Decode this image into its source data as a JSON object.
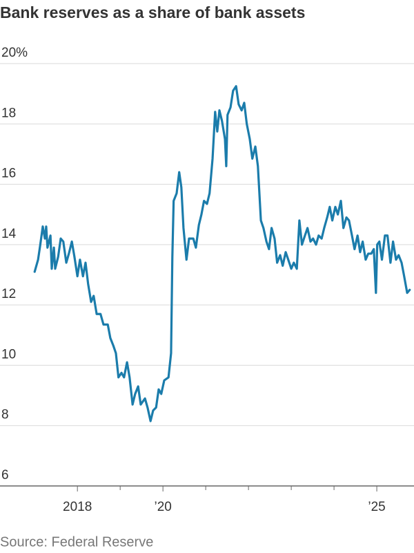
{
  "chart_data": {
    "type": "line",
    "title": "Bank reserves as a share of bank assets",
    "source": "Source: Federal Reserve",
    "color": "#1b7cab",
    "x": [
      2017.0,
      2017.08,
      2017.13,
      2017.19,
      2017.24,
      2017.27,
      2017.3,
      2017.37,
      2017.4,
      2017.45,
      2017.48,
      2017.55,
      2017.61,
      2017.67,
      2017.74,
      2017.8,
      2017.87,
      2017.93,
      2018.0,
      2018.06,
      2018.13,
      2018.19,
      2018.25,
      2018.32,
      2018.38,
      2018.45,
      2018.54,
      2018.61,
      2018.71,
      2018.77,
      2018.84,
      2018.9,
      2018.96,
      2019.03,
      2019.09,
      2019.16,
      2019.22,
      2019.29,
      2019.35,
      2019.42,
      2019.48,
      2019.58,
      2019.64,
      2019.71,
      2019.77,
      2019.84,
      2019.9,
      2019.96,
      2020.03,
      2020.13,
      2020.19,
      2020.22,
      2020.25,
      2020.32,
      2020.38,
      2020.43,
      2020.48,
      2020.55,
      2020.61,
      2020.71,
      2020.77,
      2020.84,
      2020.9,
      2020.96,
      2021.03,
      2021.09,
      2021.16,
      2021.22,
      2021.27,
      2021.32,
      2021.38,
      2021.45,
      2021.48,
      2021.51,
      2021.58,
      2021.64,
      2021.71,
      2021.77,
      2021.84,
      2021.9,
      2021.96,
      2022.03,
      2022.09,
      2022.16,
      2022.22,
      2022.29,
      2022.35,
      2022.42,
      2022.48,
      2022.54,
      2022.61,
      2022.67,
      2022.74,
      2022.8,
      2022.87,
      2022.93,
      2023.0,
      2023.06,
      2023.13,
      2023.19,
      2023.25,
      2023.32,
      2023.38,
      2023.45,
      2023.51,
      2023.58,
      2023.64,
      2023.71,
      2023.77,
      2023.84,
      2023.9,
      2023.96,
      2024.03,
      2024.09,
      2024.16,
      2024.22,
      2024.29,
      2024.35,
      2024.42,
      2024.48,
      2024.55,
      2024.61,
      2024.67,
      2024.74,
      2024.8,
      2024.87,
      2024.93,
      2024.98,
      2025.01,
      2025.06,
      2025.12,
      2025.19,
      2025.25,
      2025.32,
      2025.38,
      2025.45,
      2025.51,
      2025.58,
      2025.64,
      2025.71,
      2025.77
    ],
    "values": [
      13.1,
      13.5,
      13.98,
      14.6,
      14.2,
      14.6,
      13.9,
      14.3,
      13.2,
      13.9,
      13.2,
      13.6,
      14.2,
      14.1,
      13.4,
      13.7,
      14.1,
      13.6,
      12.95,
      13.5,
      12.95,
      13.4,
      12.7,
      12.1,
      12.3,
      11.7,
      11.7,
      11.35,
      11.35,
      10.9,
      10.65,
      10.4,
      9.6,
      9.75,
      9.6,
      10.1,
      9.6,
      8.7,
      9.05,
      9.3,
      8.7,
      8.9,
      8.6,
      8.15,
      8.5,
      8.6,
      9.2,
      9.05,
      9.5,
      9.6,
      10.4,
      13.6,
      15.45,
      15.7,
      16.4,
      15.9,
      14.55,
      13.5,
      14.2,
      14.2,
      13.9,
      14.65,
      15.0,
      15.45,
      15.35,
      15.7,
      16.85,
      18.4,
      17.75,
      18.45,
      18.1,
      17.5,
      16.6,
      18.3,
      18.55,
      19.1,
      19.25,
      18.65,
      18.45,
      18.7,
      18.0,
      17.5,
      16.85,
      17.25,
      16.6,
      14.8,
      14.55,
      14.1,
      13.85,
      14.55,
      14.2,
      13.4,
      13.65,
      13.3,
      13.75,
      13.5,
      13.2,
      13.4,
      13.2,
      14.8,
      14.0,
      14.3,
      14.55,
      14.1,
      14.2,
      14.0,
      14.3,
      14.2,
      14.55,
      14.9,
      15.25,
      14.8,
      15.25,
      15.0,
      15.45,
      14.55,
      14.9,
      14.8,
      14.3,
      13.85,
      14.3,
      13.75,
      14.1,
      13.5,
      13.7,
      13.7,
      13.85,
      12.4,
      14.0,
      14.1,
      13.5,
      14.3,
      14.3,
      13.4,
      14.1,
      13.5,
      13.65,
      13.4,
      12.95,
      12.4,
      12.5
    ],
    "xlim": [
      2016.19,
      2025.87
    ],
    "xticks": [
      {
        "value": 2018,
        "label": "2018"
      },
      {
        "value": 2020,
        "label": "’20"
      },
      {
        "value": 2025,
        "label": "’25"
      }
    ],
    "xminor_ticks": [
      2019,
      2021,
      2022,
      2023,
      2024
    ],
    "ylim": [
      6,
      20
    ],
    "yticks": [
      6,
      8,
      10,
      12,
      14,
      16,
      18,
      {
        "value": 20,
        "label": "20%"
      }
    ],
    "grid": true
  }
}
